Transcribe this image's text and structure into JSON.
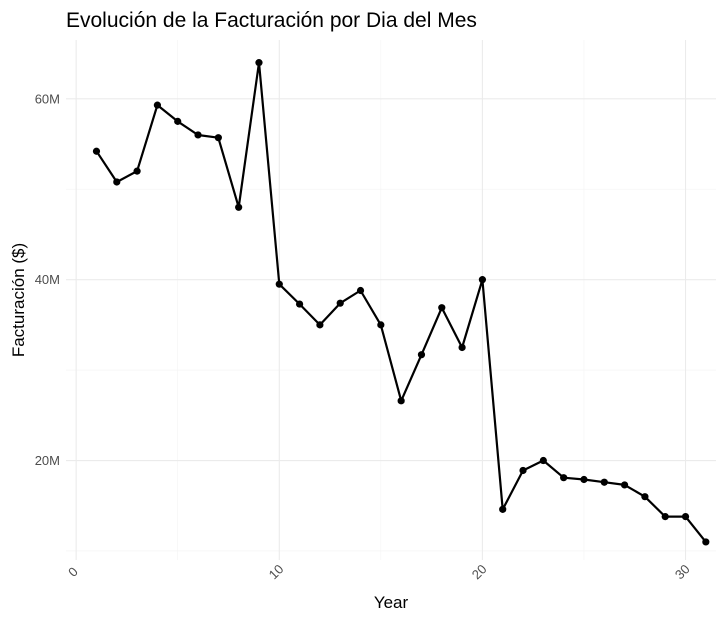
{
  "chart_data": {
    "type": "line",
    "title": "Evolución de la Facturación por Dia del Mes",
    "xlabel": "Year",
    "ylabel": "Facturación ($)",
    "xlim": [
      -0.5,
      31.5
    ],
    "ylim": [
      9000000,
      66500000
    ],
    "x_ticks": [
      {
        "value": 0,
        "label": "0"
      },
      {
        "value": 10,
        "label": "10"
      },
      {
        "value": 20,
        "label": "20"
      },
      {
        "value": 30,
        "label": "30"
      }
    ],
    "x_minor": [
      5,
      15,
      25
    ],
    "y_ticks": [
      {
        "value": 20000000,
        "label": "20M"
      },
      {
        "value": 40000000,
        "label": "40M"
      },
      {
        "value": 60000000,
        "label": "60M"
      }
    ],
    "y_minor": [
      10000000,
      30000000,
      50000000
    ],
    "grid": true,
    "color": "#000000",
    "x": [
      1,
      2,
      3,
      4,
      5,
      6,
      7,
      8,
      9,
      10,
      11,
      12,
      13,
      14,
      15,
      16,
      17,
      18,
      19,
      20,
      21,
      22,
      23,
      24,
      25,
      26,
      27,
      28,
      29,
      30,
      31
    ],
    "values": [
      54200000,
      50800000,
      52000000,
      59300000,
      57500000,
      56000000,
      55700000,
      48000000,
      64000000,
      39500000,
      37300000,
      35000000,
      37400000,
      38800000,
      35000000,
      26600000,
      31700000,
      36900000,
      32500000,
      40000000,
      14600000,
      18900000,
      20000000,
      18100000,
      17900000,
      17600000,
      17300000,
      16000000,
      13800000,
      13800000,
      11000000
    ]
  }
}
